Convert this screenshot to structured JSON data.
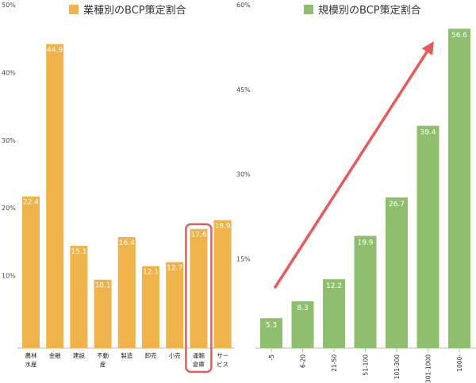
{
  "chart_data": [
    {
      "type": "bar",
      "legend": "業種別のBCP策定割合",
      "legend_position": "top",
      "color": "#F0B24A",
      "ylim": [
        0,
        50
      ],
      "yticks": [
        "10%",
        "20%",
        "30%",
        "40%",
        "50%"
      ],
      "categories": [
        [
          "農林",
          "水産"
        ],
        [
          "金融"
        ],
        [
          "建設"
        ],
        [
          "不動",
          "産"
        ],
        [
          "製造"
        ],
        [
          "卸売"
        ],
        [
          "小売"
        ],
        [
          "運輸",
          "倉庫"
        ],
        [
          "サー",
          "ビス"
        ]
      ],
      "values": [
        22.4,
        44.9,
        15.1,
        10.1,
        16.4,
        12.1,
        12.7,
        17.6,
        18.9
      ],
      "value_labels": [
        "22.4",
        "44.9",
        "15.1",
        "10.1",
        "16.4",
        "12.1",
        "12.7",
        "17.6",
        "18.9"
      ],
      "highlight_index": 7,
      "highlight_color": "#E85A5A",
      "grid": false
    },
    {
      "type": "bar",
      "legend": "規模別のBCP策定割合",
      "legend_position": "top",
      "color": "#8FBF6E",
      "ylim": [
        0,
        60
      ],
      "yticks": [
        "15%",
        "30%",
        "45%",
        "60%"
      ],
      "categories": [
        "-5",
        "6-20",
        "21-50",
        "51-100",
        "101-300",
        "301-1000",
        "1000-"
      ],
      "values": [
        5.3,
        8.3,
        12.2,
        19.9,
        26.7,
        39.4,
        56.6
      ],
      "value_labels": [
        "5.3",
        "8.3",
        "12.2",
        "19.9",
        "26.7",
        "39.4",
        "56.6"
      ],
      "trend_arrow_color": "#E85A5A",
      "grid": false
    }
  ]
}
